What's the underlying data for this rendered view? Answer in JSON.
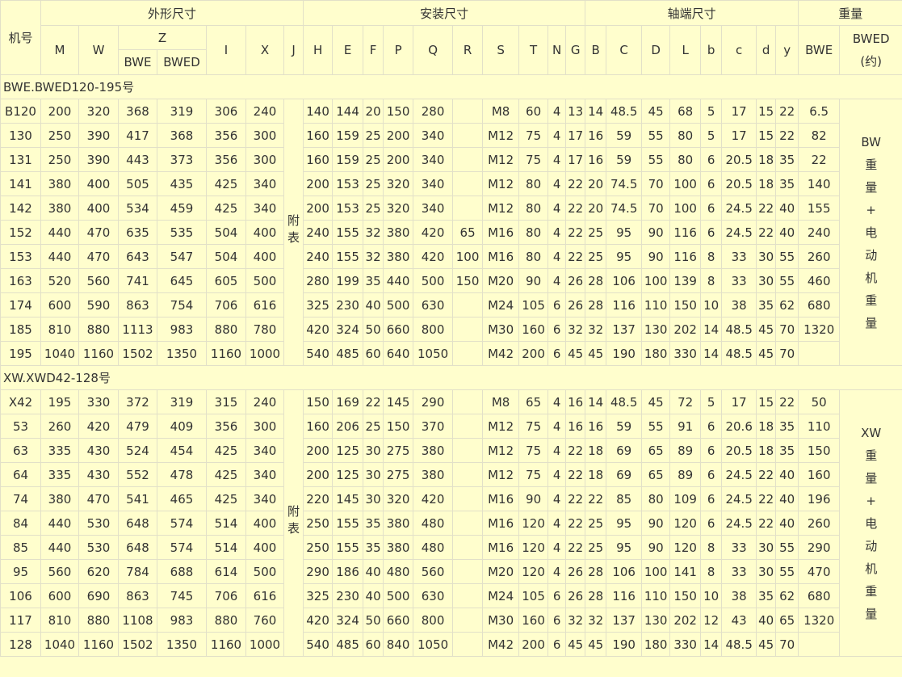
{
  "header": {
    "row1": [
      "机号",
      "外形尺寸",
      "安装尺寸",
      "轴端尺寸",
      "重量"
    ],
    "row2": [
      "M",
      "W",
      "Z",
      "I",
      "X",
      "J",
      "H",
      "E",
      "F",
      "P",
      "Q",
      "R",
      "S",
      "T",
      "N",
      "G",
      "B",
      "C",
      "D",
      "L",
      "b",
      "c",
      "d",
      "y",
      "BWE"
    ],
    "row2_last": [
      "BWED",
      "(约)"
    ],
    "row3": [
      "BWE",
      "BWED"
    ]
  },
  "sections": [
    {
      "title": "BWE.BWED120-195号",
      "note_j": "附表",
      "note_weight": [
        "BW",
        "重",
        "量",
        "+",
        "电",
        "动",
        "机",
        "重",
        "量"
      ],
      "rows": [
        [
          "B120",
          200,
          320,
          368,
          319,
          306,
          240,
          140,
          144,
          20,
          150,
          280,
          null,
          "M8",
          60,
          4,
          13,
          14,
          48.5,
          45,
          68,
          5,
          17,
          15,
          22,
          6.5
        ],
        [
          130,
          250,
          390,
          417,
          368,
          356,
          300,
          160,
          159,
          25,
          200,
          340,
          null,
          "M12",
          75,
          4,
          17,
          16,
          59,
          55,
          80,
          5,
          17,
          15,
          22,
          82
        ],
        [
          131,
          250,
          390,
          443,
          373,
          356,
          300,
          160,
          159,
          25,
          200,
          340,
          null,
          "M12",
          75,
          4,
          17,
          16,
          59,
          55,
          80,
          6,
          20.5,
          18,
          35,
          22
        ],
        [
          141,
          380,
          400,
          505,
          435,
          425,
          340,
          200,
          153,
          25,
          320,
          340,
          null,
          "M12",
          80,
          4,
          22,
          20,
          74.5,
          70,
          100,
          6,
          20.5,
          18,
          35,
          140
        ],
        [
          142,
          380,
          400,
          534,
          459,
          425,
          340,
          200,
          153,
          25,
          320,
          340,
          null,
          "M12",
          80,
          4,
          22,
          20,
          74.5,
          70,
          100,
          6,
          24.5,
          22,
          40,
          155
        ],
        [
          152,
          440,
          470,
          635,
          535,
          504,
          400,
          240,
          155,
          32,
          380,
          420,
          65,
          "M16",
          80,
          4,
          22,
          25,
          95,
          90,
          116,
          6,
          24.5,
          22,
          40,
          240
        ],
        [
          153,
          440,
          470,
          643,
          547,
          504,
          400,
          240,
          155,
          32,
          380,
          420,
          100,
          "M16",
          80,
          4,
          22,
          25,
          95,
          90,
          116,
          8,
          33,
          30,
          55,
          260
        ],
        [
          163,
          520,
          560,
          741,
          645,
          605,
          500,
          280,
          199,
          35,
          440,
          500,
          150,
          "M20",
          90,
          4,
          26,
          28,
          106,
          100,
          139,
          8,
          33,
          30,
          55,
          460
        ],
        [
          174,
          600,
          590,
          863,
          754,
          706,
          616,
          325,
          230,
          40,
          500,
          630,
          null,
          "M24",
          105,
          6,
          26,
          28,
          116,
          110,
          150,
          10,
          38,
          35,
          62,
          680
        ],
        [
          185,
          810,
          880,
          1113,
          983,
          880,
          780,
          420,
          324,
          50,
          660,
          800,
          null,
          "M30",
          160,
          6,
          32,
          32,
          137,
          130,
          202,
          14,
          48.5,
          45,
          70,
          1320
        ],
        [
          195,
          1040,
          1160,
          1502,
          1350,
          1160,
          1000,
          540,
          485,
          60,
          640,
          1050,
          null,
          "M42",
          200,
          6,
          45,
          45,
          190,
          180,
          330,
          14,
          48.5,
          45,
          70,
          null
        ]
      ]
    },
    {
      "title": "XW.XWD42-128号",
      "note_j": "附表",
      "note_weight": [
        "XW",
        "重",
        "量",
        "+",
        "电",
        "动",
        "机",
        "重",
        "量"
      ],
      "rows": [
        [
          "X42",
          195,
          330,
          372,
          319,
          315,
          240,
          150,
          169,
          22,
          145,
          290,
          null,
          "M8",
          65,
          4,
          16,
          14,
          48.5,
          45,
          72,
          5,
          17,
          15,
          22,
          50
        ],
        [
          53,
          260,
          420,
          479,
          409,
          356,
          300,
          160,
          206,
          25,
          150,
          370,
          null,
          "M12",
          75,
          4,
          16,
          16,
          59,
          55,
          91,
          6,
          20.6,
          18,
          35,
          110
        ],
        [
          63,
          335,
          430,
          524,
          454,
          425,
          340,
          200,
          125,
          30,
          275,
          380,
          null,
          "M12",
          75,
          4,
          22,
          18,
          69,
          65,
          89,
          6,
          20.5,
          18,
          35,
          150
        ],
        [
          64,
          335,
          430,
          552,
          478,
          425,
          340,
          200,
          125,
          30,
          275,
          380,
          null,
          "M12",
          75,
          4,
          22,
          18,
          69,
          65,
          89,
          6,
          24.5,
          22,
          40,
          160
        ],
        [
          74,
          380,
          470,
          541,
          465,
          425,
          340,
          220,
          145,
          30,
          320,
          420,
          null,
          "M16",
          90,
          4,
          22,
          22,
          85,
          80,
          109,
          6,
          24.5,
          22,
          40,
          196
        ],
        [
          84,
          440,
          530,
          648,
          574,
          514,
          400,
          250,
          155,
          35,
          380,
          480,
          null,
          "M16",
          120,
          4,
          22,
          25,
          95,
          90,
          120,
          6,
          24.5,
          22,
          40,
          260
        ],
        [
          85,
          440,
          530,
          648,
          574,
          514,
          400,
          250,
          155,
          35,
          380,
          480,
          null,
          "M16",
          120,
          4,
          22,
          25,
          95,
          90,
          120,
          8,
          33,
          30,
          55,
          290
        ],
        [
          95,
          560,
          620,
          784,
          688,
          614,
          500,
          290,
          186,
          40,
          480,
          560,
          null,
          "M20",
          120,
          4,
          26,
          28,
          106,
          100,
          141,
          8,
          33,
          30,
          55,
          470
        ],
        [
          106,
          600,
          690,
          863,
          745,
          706,
          616,
          325,
          230,
          40,
          500,
          630,
          null,
          "M24",
          105,
          6,
          26,
          28,
          116,
          110,
          150,
          10,
          38,
          35,
          62,
          680
        ],
        [
          117,
          810,
          880,
          1108,
          983,
          880,
          760,
          420,
          324,
          50,
          660,
          800,
          null,
          "M30",
          160,
          6,
          32,
          32,
          137,
          130,
          202,
          12,
          43,
          40,
          65,
          1320
        ],
        [
          128,
          1040,
          1160,
          1502,
          1350,
          1160,
          1000,
          540,
          485,
          60,
          840,
          1050,
          null,
          "M42",
          200,
          6,
          45,
          45,
          190,
          180,
          330,
          14,
          48.5,
          45,
          70,
          null
        ]
      ]
    }
  ]
}
